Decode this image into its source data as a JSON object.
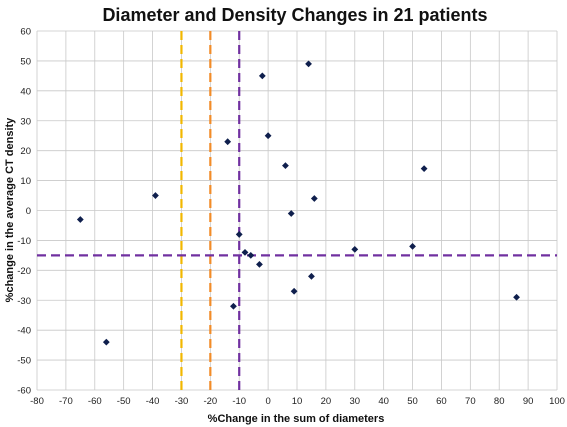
{
  "chart_data": {
    "type": "scatter",
    "title": "Diameter and Density Changes in 21 patients",
    "xlabel": "%Change in the sum of diameters",
    "ylabel": "%change in the average CT density",
    "xlim": [
      -80,
      100
    ],
    "ylim": [
      -60,
      60
    ],
    "xticks": [
      -80,
      -70,
      -60,
      -50,
      -40,
      -30,
      -20,
      -10,
      0,
      10,
      20,
      30,
      40,
      50,
      60,
      70,
      80,
      90,
      100
    ],
    "yticks": [
      -60,
      -50,
      -40,
      -30,
      -20,
      -10,
      0,
      10,
      20,
      30,
      40,
      50,
      60
    ],
    "grid": true,
    "points": [
      {
        "x": -65,
        "y": -3
      },
      {
        "x": -56,
        "y": -44
      },
      {
        "x": -39,
        "y": 5
      },
      {
        "x": -14,
        "y": 23
      },
      {
        "x": -12,
        "y": -32
      },
      {
        "x": -10,
        "y": -8
      },
      {
        "x": -8,
        "y": -14
      },
      {
        "x": -6,
        "y": -15
      },
      {
        "x": -3,
        "y": -18
      },
      {
        "x": -2,
        "y": 45
      },
      {
        "x": 0,
        "y": 25
      },
      {
        "x": 6,
        "y": 15
      },
      {
        "x": 8,
        "y": -1
      },
      {
        "x": 9,
        "y": -27
      },
      {
        "x": 14,
        "y": 49
      },
      {
        "x": 15,
        "y": -22
      },
      {
        "x": 16,
        "y": 4
      },
      {
        "x": 30,
        "y": -13
      },
      {
        "x": 50,
        "y": -12
      },
      {
        "x": 54,
        "y": 14
      },
      {
        "x": 86,
        "y": -29
      }
    ],
    "marker_color": "#0f1f4d",
    "reference_lines": [
      {
        "orientation": "vertical",
        "value": -30,
        "color": "#f2b700"
      },
      {
        "orientation": "vertical",
        "value": -20,
        "color": "#f28c28"
      },
      {
        "orientation": "vertical",
        "value": -10,
        "color": "#7030a0"
      },
      {
        "orientation": "horizontal",
        "value": -15,
        "color": "#7030a0"
      }
    ]
  }
}
